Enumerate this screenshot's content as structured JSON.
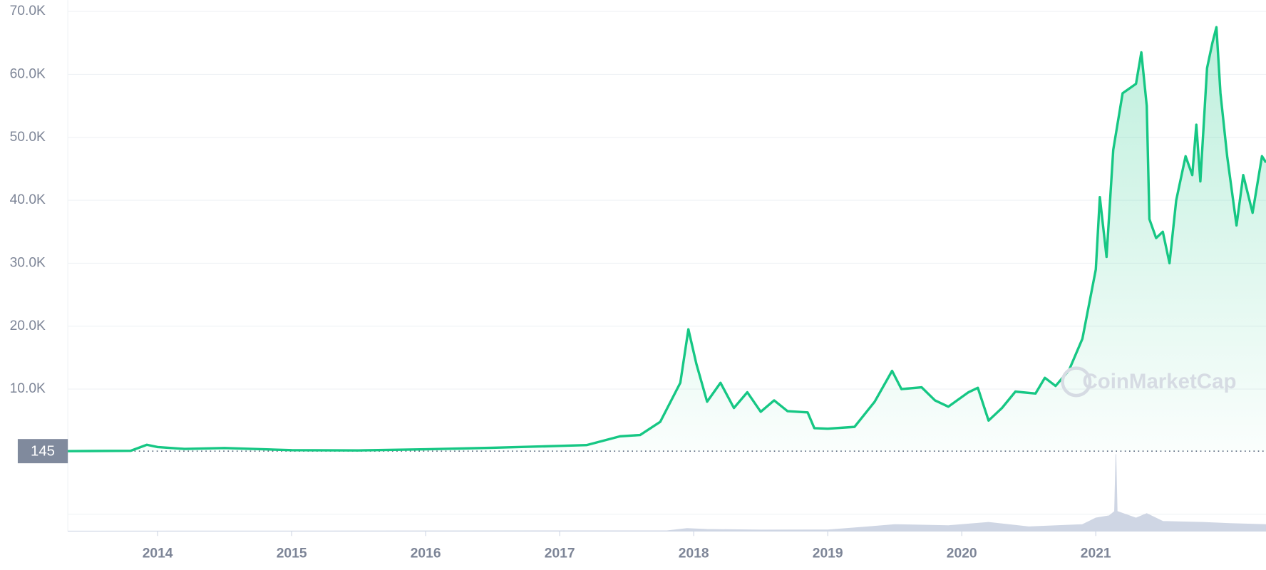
{
  "chart_data": {
    "type": "line",
    "x": [
      2013.33,
      2013.8,
      2013.92,
      2014.0,
      2014.2,
      2014.5,
      2015.0,
      2015.5,
      2016.0,
      2016.5,
      2017.0,
      2017.2,
      2017.45,
      2017.6,
      2017.75,
      2017.9,
      2017.96,
      2018.02,
      2018.1,
      2018.2,
      2018.3,
      2018.4,
      2018.5,
      2018.6,
      2018.7,
      2018.85,
      2018.9,
      2019.0,
      2019.2,
      2019.35,
      2019.48,
      2019.55,
      2019.7,
      2019.8,
      2019.9,
      2020.05,
      2020.12,
      2020.2,
      2020.3,
      2020.4,
      2020.55,
      2020.62,
      2020.7,
      2020.8,
      2020.9,
      2021.0,
      2021.03,
      2021.08,
      2021.13,
      2021.2,
      2021.3,
      2021.34,
      2021.38,
      2021.4,
      2021.45,
      2021.5,
      2021.55,
      2021.6,
      2021.67,
      2021.72,
      2021.75,
      2021.78,
      2021.83,
      2021.87,
      2021.9,
      2021.93,
      2021.98,
      2022.05,
      2022.1,
      2022.17,
      2022.24,
      2022.27
    ],
    "series": [
      {
        "color": "#16c784",
        "values": [
          145,
          200,
          1150,
          800,
          500,
          640,
          300,
          260,
          430,
          680,
          970,
          1100,
          2500,
          2700,
          4800,
          11000,
          19500,
          14000,
          8000,
          11000,
          7000,
          9500,
          6400,
          8200,
          6500,
          6300,
          3800,
          3700,
          4000,
          8000,
          12900,
          10000,
          10300,
          8200,
          7200,
          9500,
          10200,
          5000,
          7000,
          9600,
          9300,
          11800,
          10500,
          13000,
          18000,
          29000,
          40500,
          31000,
          48000,
          57000,
          58500,
          63500,
          55000,
          37000,
          34000,
          35000,
          30000,
          40000,
          47000,
          44000,
          52000,
          43000,
          61000,
          65000,
          67500,
          57000,
          47000,
          36000,
          44000,
          38000,
          47000,
          46000
        ]
      }
    ],
    "xlim": [
      2013.33,
      2022.27
    ],
    "xticks": [
      2014,
      2015,
      2016,
      2017,
      2018,
      2019,
      2020,
      2021
    ],
    "ylim": [
      0,
      71800
    ],
    "yticks": [
      {
        "value": 10000,
        "label": "10.0K"
      },
      {
        "value": 20000,
        "label": "20.0K"
      },
      {
        "value": 30000,
        "label": "30.0K"
      },
      {
        "value": 40000,
        "label": "40.0K"
      },
      {
        "value": 50000,
        "label": "50.0K"
      },
      {
        "value": 60000,
        "label": "60.0K"
      },
      {
        "value": 70000,
        "label": "70.0K"
      }
    ],
    "grid": true,
    "baseline": 145,
    "watermark": "CoinMarketCap",
    "volume": {
      "color": "#cfd6e4",
      "x": [
        2013.33,
        2017.8,
        2017.95,
        2018.1,
        2018.5,
        2019.0,
        2019.3,
        2019.5,
        2019.9,
        2020.2,
        2020.5,
        2020.9,
        2021.0,
        2021.1,
        2021.14,
        2021.15,
        2021.16,
        2021.3,
        2021.38,
        2021.5,
        2021.8,
        2022.0,
        2022.27
      ],
      "values": [
        0,
        2000000000,
        12000000000,
        8000000000,
        5000000000,
        6000000000,
        20000000000,
        30000000000,
        25000000000,
        40000000000,
        20000000000,
        30000000000,
        60000000000,
        70000000000,
        90000000000,
        350000000000,
        90000000000,
        60000000000,
        80000000000,
        45000000000,
        40000000000,
        35000000000,
        30000000000
      ]
    },
    "volume_lim": [
      0,
      360000000000
    ]
  }
}
